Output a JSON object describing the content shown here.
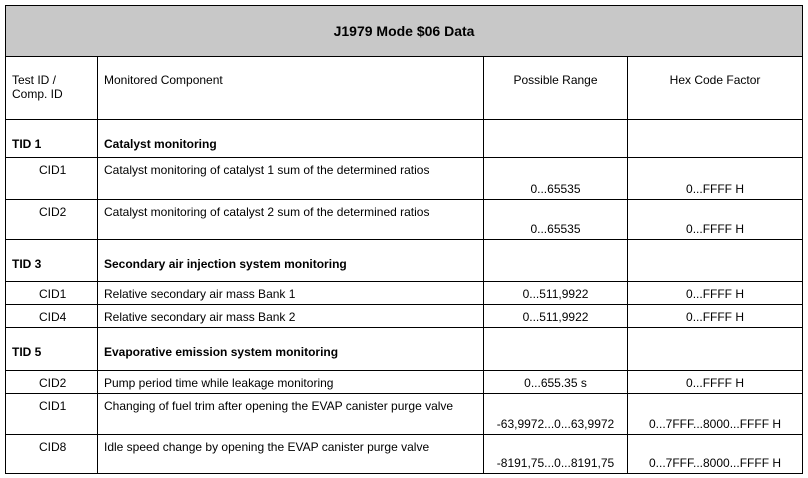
{
  "title": "J1979 Mode $06 Data",
  "header": [
    "Test ID / Comp. ID",
    "Monitored Component",
    "Possible Range",
    "Hex Code Factor"
  ],
  "rows": [
    {
      "id": "TID 1",
      "component": "Catalyst monitoring"
    },
    {
      "id": "CID1",
      "component": "Catalyst monitoring of catalyst 1 sum of the determined ratios",
      "range": "0...65535",
      "factor": "0...FFFF H"
    },
    {
      "id": "CID2",
      "component": "Catalyst monitoring of catalyst 2 sum of the determined ratios",
      "range": "0...65535",
      "factor": "0...FFFF H"
    },
    {
      "id": "TID 3",
      "component": "Secondary air injection system monitoring"
    },
    {
      "id": "CID1",
      "component": "Relative secondary air mass Bank 1",
      "range": "0...511,9922",
      "factor": "0...FFFF H"
    },
    {
      "id": "CID4",
      "component": "Relative secondary air mass Bank 2",
      "range": "0...511,9922",
      "factor": "0...FFFF H"
    },
    {
      "id": "TID 5",
      "component": "Evaporative emission system monitoring"
    },
    {
      "id": "CID2",
      "component": "Pump period time while leakage monitoring",
      "range": "0...655.35 s",
      "factor": "0...FFFF H"
    },
    {
      "id": "CID1",
      "component": "Changing of fuel trim after opening the EVAP canister purge valve",
      "range": "-63,9972...0...63,9972",
      "factor": "0...7FFF...8000...FFFF H"
    },
    {
      "id": "CID8",
      "component": "Idle speed change by opening the EVAP canister purge valve",
      "range": "-8191,75...0...8191,75",
      "factor": "0...7FFF...8000...FFFF H"
    }
  ]
}
